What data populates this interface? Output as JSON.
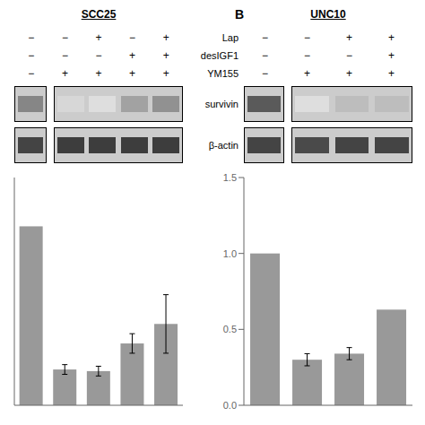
{
  "chart_data": [
    {
      "type": "bar",
      "title": "SCC25",
      "categories": [
        null,
        null,
        null,
        null,
        null
      ],
      "values": [
        1.1,
        0.22,
        0.21,
        0.38,
        0.5
      ],
      "errors": [
        0.0,
        0.03,
        0.03,
        0.06,
        0.18
      ],
      "color": "#999999",
      "ylim": [
        0,
        1.4
      ],
      "yticks": [],
      "tick_labels": false,
      "grid": false,
      "treatments": [
        {
          "signs": [
            "−",
            "−",
            "+",
            "−",
            "+"
          ]
        },
        {
          "signs": [
            "−",
            "−",
            "−",
            "+",
            "+"
          ]
        },
        {
          "signs": [
            "−",
            "+",
            "+",
            "+",
            "+"
          ]
        }
      ],
      "blots": [
        {
          "box1": [
            0.55
          ],
          "box2": [
            0.18,
            0.15,
            0.42,
            0.5
          ]
        },
        {
          "box1": [
            0.85
          ],
          "box2": [
            0.88,
            0.88,
            0.88,
            0.88
          ]
        }
      ]
    },
    {
      "type": "bar",
      "title": "UNC10",
      "panel_label": "B",
      "categories": [
        null,
        null,
        null,
        null
      ],
      "values": [
        1.0,
        0.3,
        0.34,
        0.63
      ],
      "errors": [
        0.0,
        0.04,
        0.04,
        0.0
      ],
      "color": "#999999",
      "ylim": [
        0,
        1.5
      ],
      "yticks": [
        {
          "value": 0.0,
          "label": "0.0"
        },
        0.5,
        {
          "value": 1.0,
          "label": "1.0"
        },
        1.5
      ],
      "tick_labels": "y",
      "grid": false,
      "treatments": [
        {
          "label": "Lap",
          "signs": [
            "−",
            "−",
            "+",
            "+"
          ]
        },
        {
          "label": "desIGF1",
          "signs": [
            "−",
            "−",
            "−",
            "+"
          ]
        },
        {
          "label": "YM155",
          "signs": [
            "−",
            "+",
            "+",
            "+"
          ]
        }
      ],
      "blots": [
        {
          "label": "survivin",
          "box1": [
            0.75
          ],
          "box2": [
            0.15,
            0.3,
            0.3
          ]
        },
        {
          "label": "β-actin",
          "box1": [
            0.85
          ],
          "box2": [
            0.82,
            0.85,
            0.85
          ]
        }
      ]
    }
  ]
}
